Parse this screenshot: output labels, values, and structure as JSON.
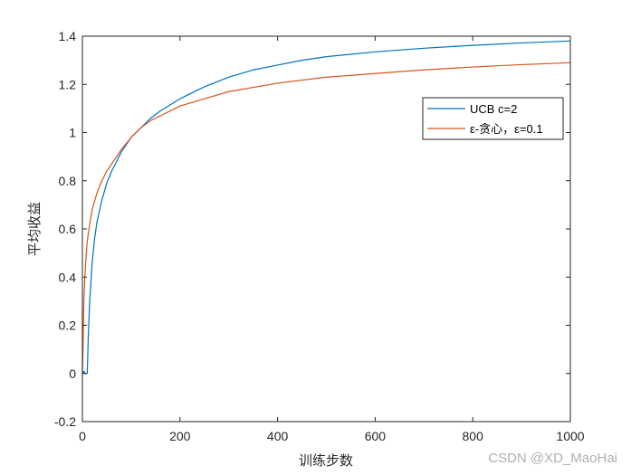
{
  "chart_data": {
    "type": "line",
    "xlabel": "训练步数",
    "ylabel": "平均收益",
    "xlim": [
      0,
      1000
    ],
    "ylim": [
      -0.2,
      1.4
    ],
    "xticks": [
      0,
      200,
      400,
      600,
      800,
      1000
    ],
    "xtick_labels": [
      "0",
      "200",
      "400",
      "600",
      "800",
      "1000"
    ],
    "yticks": [
      -0.2,
      0,
      0.2,
      0.4,
      0.6,
      0.8,
      1.0,
      1.2,
      1.4
    ],
    "ytick_labels": [
      "-0.2",
      "0",
      "0.2",
      "0.4",
      "0.6",
      "0.8",
      "1",
      "1.2",
      "1.4"
    ],
    "grid": false,
    "legend_position": "top-right",
    "series": [
      {
        "name": "UCB c=2",
        "color": "#0072BD",
        "x": [
          0,
          1,
          3,
          5,
          8,
          10,
          12,
          15,
          20,
          25,
          30,
          40,
          50,
          60,
          70,
          80,
          100,
          120,
          140,
          160,
          200,
          250,
          300,
          350,
          400,
          450,
          500,
          600,
          700,
          800,
          900,
          1000
        ],
        "y": [
          0.0,
          0.0,
          0.01,
          0.0,
          0.0,
          0.0,
          0.15,
          0.3,
          0.46,
          0.56,
          0.63,
          0.72,
          0.79,
          0.84,
          0.88,
          0.92,
          0.98,
          1.02,
          1.06,
          1.09,
          1.14,
          1.19,
          1.23,
          1.26,
          1.28,
          1.3,
          1.315,
          1.335,
          1.35,
          1.362,
          1.372,
          1.38
        ]
      },
      {
        "name": "ε-贪心，ε=0.1",
        "color": "#D95319",
        "x": [
          0,
          1,
          2,
          3,
          5,
          8,
          10,
          15,
          20,
          30,
          40,
          50,
          60,
          80,
          100,
          120,
          140,
          160,
          200,
          250,
          300,
          400,
          500,
          600,
          700,
          800,
          900,
          1000
        ],
        "y": [
          0.0,
          0.08,
          0.2,
          0.3,
          0.4,
          0.5,
          0.55,
          0.62,
          0.68,
          0.75,
          0.8,
          0.84,
          0.87,
          0.93,
          0.98,
          1.02,
          1.05,
          1.07,
          1.11,
          1.14,
          1.17,
          1.205,
          1.23,
          1.245,
          1.26,
          1.272,
          1.282,
          1.29
        ]
      }
    ]
  },
  "watermark": "CSDN @XD_MaoHai"
}
